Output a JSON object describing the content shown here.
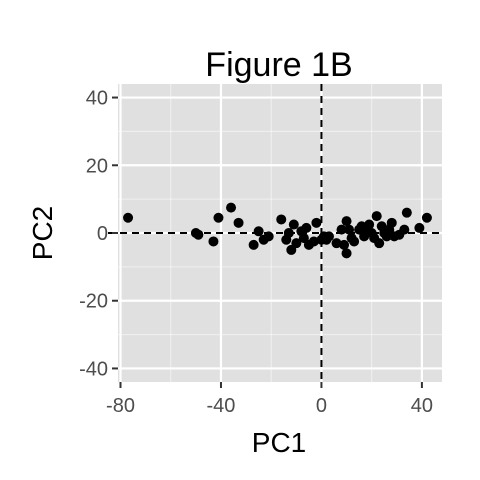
{
  "chart_data": {
    "type": "scatter",
    "title": "Figure 1B",
    "xlabel": "PC1",
    "ylabel": "PC2",
    "xlim": [
      -81,
      48
    ],
    "ylim": [
      -44,
      44
    ],
    "x_ticks": [
      -80,
      -40,
      0,
      40
    ],
    "y_ticks": [
      -40,
      -20,
      0,
      20,
      40
    ],
    "reference_lines": {
      "x": 0,
      "y": 0
    },
    "grid": true,
    "legend": "none",
    "colors": {
      "panel": "#e0e0e0",
      "grid": "#ffffff",
      "point": "#000000",
      "tick_label": "#4d4d4d"
    },
    "points": [
      {
        "x": -77,
        "y": 4.5
      },
      {
        "x": -50,
        "y": 0
      },
      {
        "x": -49,
        "y": -0.5
      },
      {
        "x": -43,
        "y": -2.5
      },
      {
        "x": -41,
        "y": 4.5
      },
      {
        "x": -36,
        "y": 7.5
      },
      {
        "x": -33,
        "y": 3
      },
      {
        "x": -27,
        "y": -3.5
      },
      {
        "x": -25,
        "y": 0.5
      },
      {
        "x": -23,
        "y": -2
      },
      {
        "x": -21,
        "y": -1
      },
      {
        "x": -16,
        "y": 4
      },
      {
        "x": -14,
        "y": -2
      },
      {
        "x": -13,
        "y": 0
      },
      {
        "x": -12,
        "y": -5
      },
      {
        "x": -11,
        "y": 2.5
      },
      {
        "x": -10,
        "y": -3
      },
      {
        "x": -8,
        "y": 0.5
      },
      {
        "x": -7,
        "y": -1.5
      },
      {
        "x": -6,
        "y": 1.5
      },
      {
        "x": -5,
        "y": -3.5
      },
      {
        "x": -3,
        "y": -2.5
      },
      {
        "x": -2,
        "y": 3
      },
      {
        "x": 0,
        "y": -2
      },
      {
        "x": 1,
        "y": -1
      },
      {
        "x": 2,
        "y": -2
      },
      {
        "x": 3,
        "y": -1
      },
      {
        "x": 6,
        "y": -3
      },
      {
        "x": 8,
        "y": 1
      },
      {
        "x": 9,
        "y": -3.5
      },
      {
        "x": 10,
        "y": 3.5
      },
      {
        "x": 10,
        "y": -6
      },
      {
        "x": 11,
        "y": 1
      },
      {
        "x": 12,
        "y": -1.5
      },
      {
        "x": 13,
        "y": -2.5
      },
      {
        "x": 15,
        "y": 1
      },
      {
        "x": 16,
        "y": 2
      },
      {
        "x": 17,
        "y": -1
      },
      {
        "x": 18,
        "y": 0.5
      },
      {
        "x": 19,
        "y": 2.5
      },
      {
        "x": 20,
        "y": 0
      },
      {
        "x": 21,
        "y": -1.5
      },
      {
        "x": 22,
        "y": 5
      },
      {
        "x": 23,
        "y": -3
      },
      {
        "x": 24,
        "y": 2
      },
      {
        "x": 25,
        "y": 0
      },
      {
        "x": 26,
        "y": -1
      },
      {
        "x": 27,
        "y": 1
      },
      {
        "x": 28,
        "y": 3
      },
      {
        "x": 29,
        "y": -1
      },
      {
        "x": 31,
        "y": -0.5
      },
      {
        "x": 33,
        "y": 1
      },
      {
        "x": 34,
        "y": 6
      },
      {
        "x": 39,
        "y": 1.5
      },
      {
        "x": 42,
        "y": 4.5
      }
    ]
  }
}
